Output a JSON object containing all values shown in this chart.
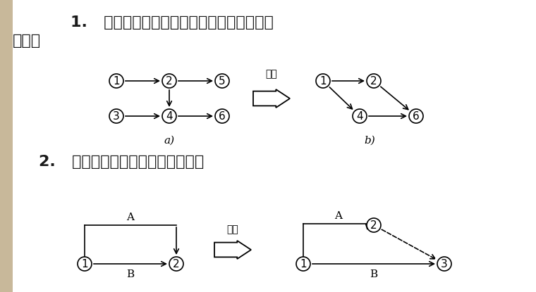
{
  "background_color": "#ffffff",
  "text_color": "#1a1a1a",
  "title1_line1": "1.   一张网络图只允许有一个始节点和一个终",
  "title1_line2": "节点。",
  "title2": "2.   两节点之间只允许有一条箭线。",
  "gaibei": "改为",
  "label_a": "a)",
  "label_b": "b)",
  "label_A": "A",
  "label_B": "B",
  "node_r": 0.22,
  "font_size_title": 16,
  "font_size_node": 11,
  "font_size_label": 11,
  "font_size_gaibei": 10,
  "lw": 1.2,
  "left_bar_color": "#c8b89a"
}
